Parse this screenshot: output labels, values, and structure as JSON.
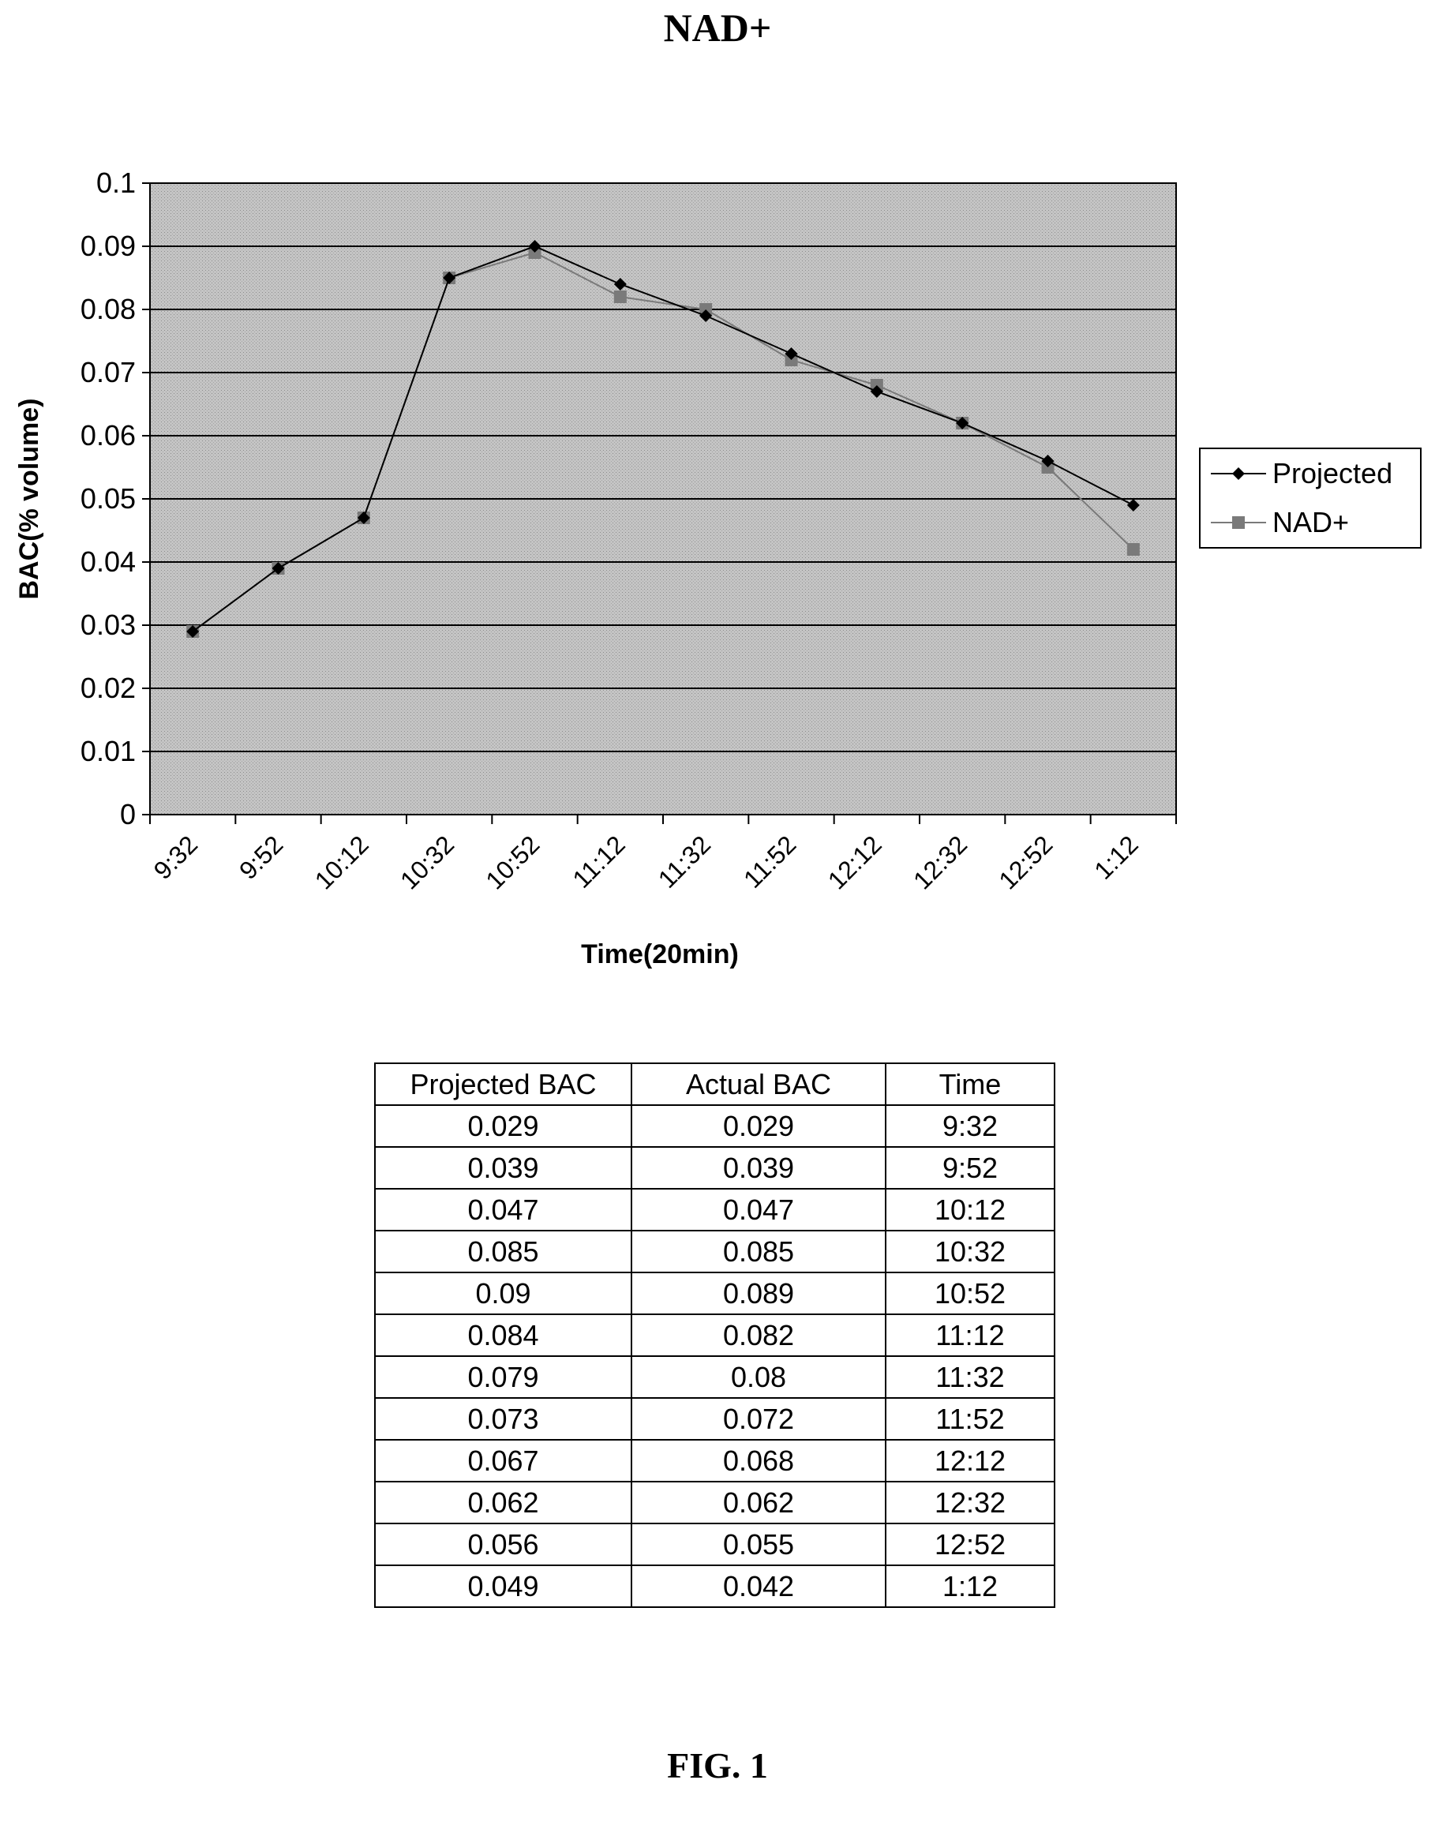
{
  "page_title": "NAD+",
  "figure_caption": "FIG. 1",
  "chart_data": {
    "type": "line",
    "title": "",
    "xlabel": "Time(20min)",
    "ylabel": "BAC(% volume)",
    "ylim": [
      0,
      0.1
    ],
    "yticks": [
      "0",
      "0.01",
      "0.02",
      "0.03",
      "0.04",
      "0.05",
      "0.06",
      "0.07",
      "0.08",
      "0.09",
      "0.1"
    ],
    "x_tick_labels": [
      "9:32",
      "9:52",
      "10:12",
      "10:32",
      "10:52",
      "11:12",
      "11:32",
      "11:52",
      "12:12",
      "12:32",
      "12:52",
      "1:12"
    ],
    "grid": true,
    "legend_position": "right",
    "series": [
      {
        "name": "Projected",
        "color": "#000000",
        "marker": "diamond",
        "values": [
          0.029,
          0.039,
          0.047,
          0.085,
          0.09,
          0.084,
          0.079,
          0.073,
          0.067,
          0.062,
          0.056,
          0.049
        ]
      },
      {
        "name": "NAD+",
        "color": "#7a7a7a",
        "marker": "square",
        "values": [
          0.029,
          0.039,
          0.047,
          0.085,
          0.089,
          0.082,
          0.08,
          0.072,
          0.068,
          0.062,
          0.055,
          0.042
        ]
      }
    ]
  },
  "table": {
    "headers": [
      "Projected BAC",
      "Actual BAC",
      "Time"
    ],
    "rows": [
      [
        "0.029",
        "0.029",
        "9:32"
      ],
      [
        "0.039",
        "0.039",
        "9:52"
      ],
      [
        "0.047",
        "0.047",
        "10:12"
      ],
      [
        "0.085",
        "0.085",
        "10:32"
      ],
      [
        "0.09",
        "0.089",
        "10:52"
      ],
      [
        "0.084",
        "0.082",
        "11:12"
      ],
      [
        "0.079",
        "0.08",
        "11:32"
      ],
      [
        "0.073",
        "0.072",
        "11:52"
      ],
      [
        "0.067",
        "0.068",
        "12:12"
      ],
      [
        "0.062",
        "0.062",
        "12:32"
      ],
      [
        "0.056",
        "0.055",
        "12:52"
      ],
      [
        "0.049",
        "0.042",
        "1:12"
      ]
    ]
  }
}
